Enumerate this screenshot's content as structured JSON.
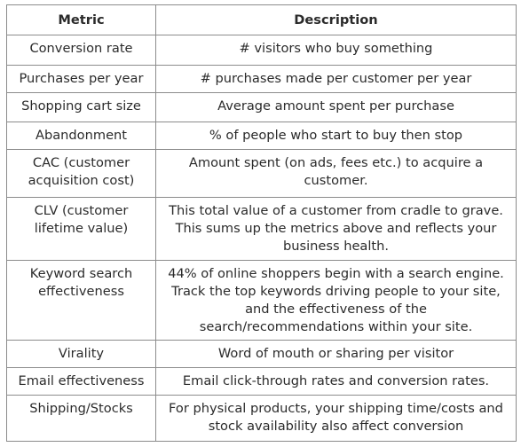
{
  "table": {
    "headers": {
      "metric": "Metric",
      "description": "Description"
    },
    "rows": [
      {
        "metric": "Conversion rate",
        "description": "# visitors who buy something"
      },
      {
        "metric": "Purchases per year",
        "description": "# purchases made per customer per year"
      },
      {
        "metric": "Shopping cart size",
        "description": "Average amount spent per purchase"
      },
      {
        "metric": "Abandonment",
        "description": "% of people who start to buy then stop"
      },
      {
        "metric": "CAC (customer acquisition cost)",
        "description": "Amount spent (on ads, fees etc.) to acquire a customer."
      },
      {
        "metric": "CLV (customer lifetime value)",
        "description": "This total value of a customer from cradle to grave. This sums up the metrics above and reflects your business health."
      },
      {
        "metric": "Keyword search effectiveness",
        "description": "44% of online shoppers begin with a search engine. Track the top keywords driving people to your site, and the effectiveness of the search/recommendations within your site."
      },
      {
        "metric": "Virality",
        "description": "Word of mouth or sharing per visitor"
      },
      {
        "metric": "Email effectiveness",
        "description": "Email click-through rates and conversion rates."
      },
      {
        "metric": "Shipping/Stocks",
        "description": "For physical products, your shipping time/costs and stock availability also affect conversion"
      }
    ]
  }
}
